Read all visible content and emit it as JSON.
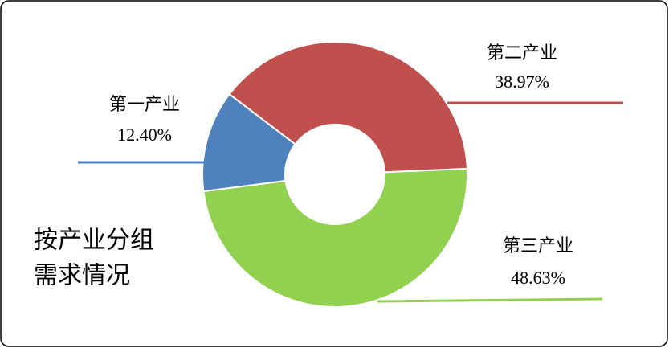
{
  "chart_data": {
    "type": "donut",
    "title": [
      "按产业分组",
      "需求情况"
    ],
    "categories": [
      "第一产业",
      "第二产业",
      "第三产业"
    ],
    "values": [
      12.4,
      38.97,
      48.63
    ],
    "value_labels": [
      "12.40%",
      "38.97%",
      "48.63%"
    ],
    "colors": [
      "#4f81bd",
      "#c0504d",
      "#92d050"
    ]
  }
}
